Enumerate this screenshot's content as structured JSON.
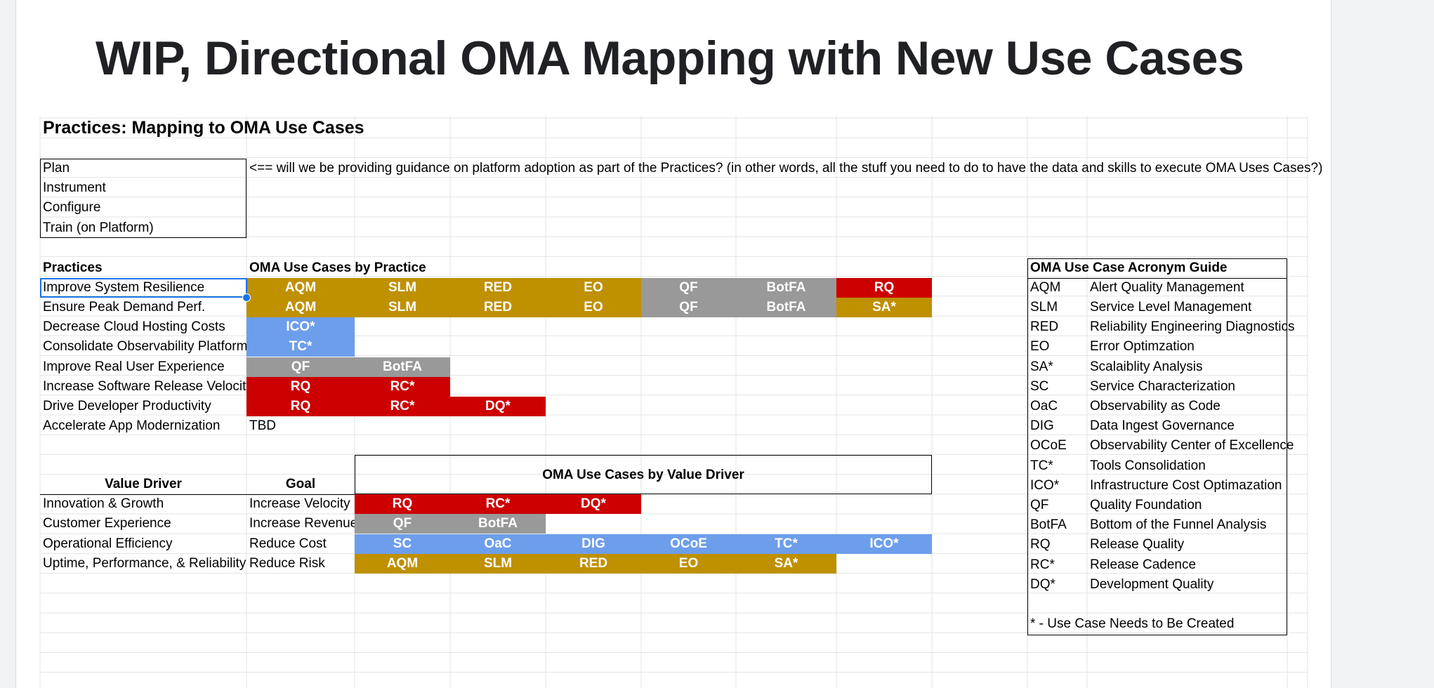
{
  "slide": {
    "title": "WIP, Directional OMA Mapping with New Use Cases"
  },
  "sheet": {
    "heading": "Practices: Mapping to OMA Use Cases",
    "plan_items": [
      "Plan",
      "Instrument",
      "Configure",
      "Train (on Platform)"
    ],
    "plan_note": "<== will we be providing guidance on platform adoption as part of the Practices? (in other words, all the stuff you need to do to have the data and skills to execute OMA Uses Cases?)",
    "practices_header": "Practices",
    "use_cases_by_practice_header": "OMA Use Cases by Practice",
    "practices": [
      {
        "name": "Improve System Resilience",
        "cases": [
          "AQM",
          "SLM",
          "RED",
          "EO",
          "QF",
          "BotFA",
          "RQ"
        ]
      },
      {
        "name": "Ensure Peak Demand Perf.",
        "cases": [
          "AQM",
          "SLM",
          "RED",
          "EO",
          "QF",
          "BotFA",
          "SA*"
        ]
      },
      {
        "name": "Decrease Cloud Hosting Costs",
        "cases": [
          "ICO*"
        ]
      },
      {
        "name": "Consolidate Observability Platforms",
        "cases": [
          "TC*"
        ]
      },
      {
        "name": "Improve Real User Experience",
        "cases": [
          "QF",
          "BotFA"
        ]
      },
      {
        "name": "Increase Software Release Velocity",
        "cases": [
          "RQ",
          "RC*"
        ]
      },
      {
        "name": "Drive Developer Productivity",
        "cases": [
          "RQ",
          "RC*",
          "DQ*"
        ]
      },
      {
        "name": "Accelerate App Modernization",
        "cases": [],
        "note": "TBD"
      }
    ],
    "value_driver_header": "Value Driver",
    "goal_header": "Goal",
    "use_cases_by_value_driver_header": "OMA Use Cases by Value Driver",
    "value_drivers": [
      {
        "driver": "Innovation & Growth",
        "goal": "Increase Velocity",
        "cases": [
          "RQ",
          "RC*",
          "DQ*"
        ]
      },
      {
        "driver": "Customer Experience",
        "goal": "Increase Revenue",
        "cases": [
          "QF",
          "BotFA"
        ]
      },
      {
        "driver": "Operational Efficiency",
        "goal": "Reduce Cost",
        "cases": [
          "SC",
          "OaC",
          "DIG",
          "OCoE",
          "TC*",
          "ICO*"
        ]
      },
      {
        "driver": "Uptime, Performance, & Reliability",
        "goal": "Reduce Risk",
        "cases": [
          "AQM",
          "SLM",
          "RED",
          "EO",
          "SA*"
        ]
      }
    ],
    "acronym_guide_header": "OMA Use Case Acronym Guide",
    "acronyms": [
      {
        "abbr": "AQM",
        "name": "Alert Quality Management"
      },
      {
        "abbr": "SLM",
        "name": "Service Level Management"
      },
      {
        "abbr": "RED",
        "name": "Reliability Engineering Diagnostics"
      },
      {
        "abbr": "EO",
        "name": "Error Optimzation"
      },
      {
        "abbr": "SA*",
        "name": "Scalaiblity Analysis"
      },
      {
        "abbr": "SC",
        "name": "Service Characterization"
      },
      {
        "abbr": "OaC",
        "name": "Observability as Code"
      },
      {
        "abbr": "DIG",
        "name": "Data Ingest Governance"
      },
      {
        "abbr": "OCoE",
        "name": "Observability Center of Excellence"
      },
      {
        "abbr": "TC*",
        "name": "Tools Consolidation"
      },
      {
        "abbr": "ICO*",
        "name": "Infrastructure Cost Optimazation"
      },
      {
        "abbr": "QF",
        "name": "Quality Foundation"
      },
      {
        "abbr": "BotFA",
        "name": "Bottom of the Funnel Analysis"
      },
      {
        "abbr": "RQ",
        "name": "Release Quality"
      },
      {
        "abbr": "RC*",
        "name": "Release Cadence"
      },
      {
        "abbr": "DQ*",
        "name": "Development Quality"
      }
    ],
    "acronym_footnote": "* - Use Case Needs to Be Created"
  },
  "colors": {
    "gold": "#bf9000",
    "gray": "#999999",
    "red": "#cc0000",
    "blue": "#6d9eeb",
    "selection": "#1a73e8",
    "gridline": "#e2e3e3"
  },
  "chip_colors": {
    "AQM": "gold",
    "SLM": "gold",
    "RED": "gold",
    "EO": "gold",
    "SA*": "gold",
    "QF": "gray",
    "BotFA": "gray",
    "RQ": "red",
    "RC*": "red",
    "DQ*": "red",
    "ICO*": "blue",
    "TC*": "blue",
    "SC": "blue",
    "OaC": "blue",
    "DIG": "blue",
    "OCoE": "blue"
  },
  "override_colors": [
    {
      "row": 0,
      "index": 6,
      "color": "red"
    }
  ]
}
